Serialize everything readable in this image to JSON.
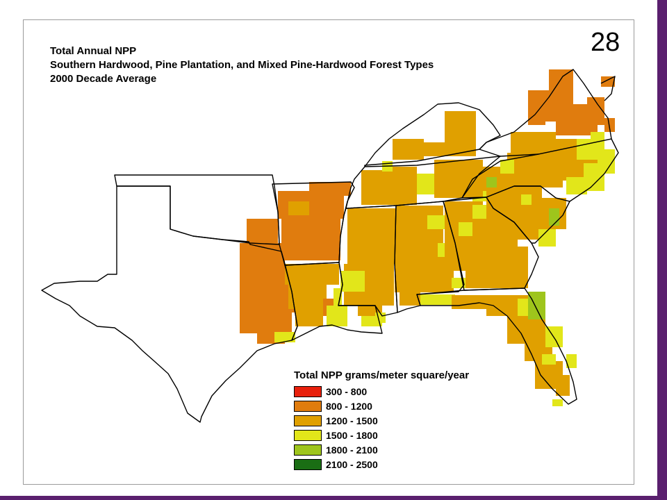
{
  "title": {
    "line1": "Total Annual NPP",
    "line2": "Southern Hardwood, Pine Plantation, and Mixed Pine-Hardwood Forest Types",
    "line3": "2000 Decade Average"
  },
  "page_number": "28",
  "legend": {
    "title": "Total NPP grams/meter square/year",
    "classes": [
      {
        "label": "300 - 800",
        "color": "#e8200c"
      },
      {
        "label": "800 - 1200",
        "color": "#e07c0e"
      },
      {
        "label": "1200 - 1500",
        "color": "#e0a000"
      },
      {
        "label": "1500 - 1800",
        "color": "#e2e61a"
      },
      {
        "label": "1800 - 2100",
        "color": "#9ec51c"
      },
      {
        "label": "2100 - 2500",
        "color": "#1a6e14"
      }
    ]
  }
}
